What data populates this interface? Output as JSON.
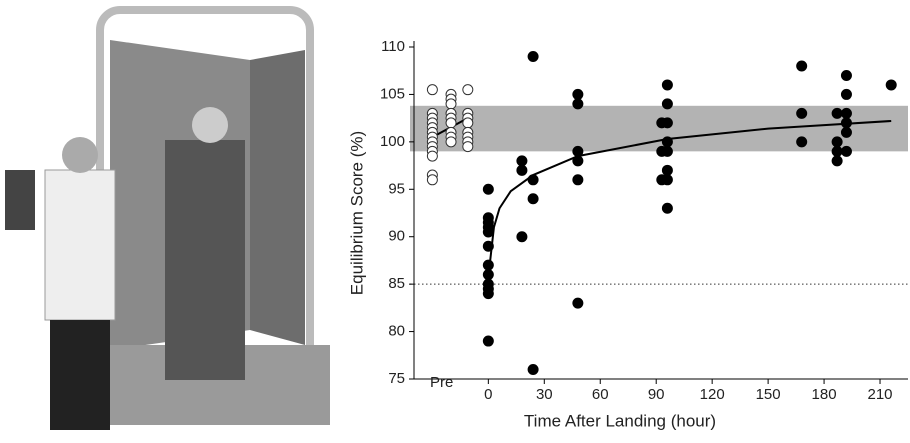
{
  "chart_data": {
    "type": "scatter",
    "y_label": "Equilibrium Score (%)",
    "x_label": "Time After Landing (hour)",
    "xlim": [
      -42,
      225
    ],
    "ylim": [
      75,
      110
    ],
    "xticks": [
      {
        "value": -25,
        "label": "Pre"
      },
      0,
      30,
      60,
      90,
      120,
      150,
      180,
      210
    ],
    "yticks": [
      75,
      80,
      85,
      90,
      95,
      100,
      105,
      110
    ],
    "band": [
      99,
      103.8
    ],
    "band_color": "#b3b3b3",
    "reference_line": 85,
    "series": [
      {
        "fill": "#ffffff",
        "color": "#333333",
        "x": [
          -30,
          -30,
          -30,
          -30,
          -30,
          -30,
          -30,
          -30,
          -30,
          -30,
          -30,
          -30,
          -30,
          -20,
          -20,
          -20,
          -20,
          -20,
          -20,
          -20,
          -20,
          -20,
          -11,
          -11,
          -11,
          -11,
          -11,
          -11,
          -11,
          -11
        ],
        "values": [
          105.5,
          103,
          102.5,
          102,
          101.5,
          101,
          100.5,
          100,
          99.5,
          99,
          98.5,
          96.5,
          96,
          105,
          104.5,
          104,
          103,
          102.5,
          102,
          101,
          100.5,
          100,
          105.5,
          103,
          102.5,
          102,
          101,
          100.5,
          100,
          99.5
        ]
      },
      {
        "fill": "#000000",
        "color": "#000000",
        "x": [
          0,
          0,
          0,
          0,
          0,
          0,
          0,
          0,
          0,
          0,
          0,
          0,
          18,
          18,
          18,
          24,
          24,
          24,
          24,
          48,
          48,
          48,
          48,
          48,
          48,
          93,
          93,
          93,
          96,
          96,
          96,
          96,
          96,
          96,
          96,
          96,
          168,
          168,
          168,
          187,
          187,
          187,
          187,
          192,
          192,
          192,
          192,
          192,
          192,
          216
        ],
        "values": [
          95,
          92,
          91.5,
          91,
          90.5,
          89,
          87,
          86,
          85,
          84.5,
          84,
          79,
          98,
          97,
          90,
          109,
          96,
          94,
          76,
          105,
          104,
          99,
          98,
          96,
          83,
          102,
          99,
          96,
          106,
          104,
          102,
          100,
          99,
          97,
          96,
          93,
          108,
          103,
          100,
          103,
          100,
          99,
          98,
          107,
          105,
          103,
          102,
          101,
          99,
          106
        ]
      }
    ],
    "fit_lines": [
      {
        "x": [
          -30,
          -11
        ],
        "values": [
          100.5,
          102.5
        ]
      },
      {
        "x": [
          0,
          1,
          3,
          6,
          12,
          24,
          48,
          96,
          150,
          216
        ],
        "values": [
          86.5,
          87.5,
          91,
          93,
          94.8,
          96.5,
          98.5,
          100.3,
          101.4,
          102.2
        ]
      }
    ]
  }
}
